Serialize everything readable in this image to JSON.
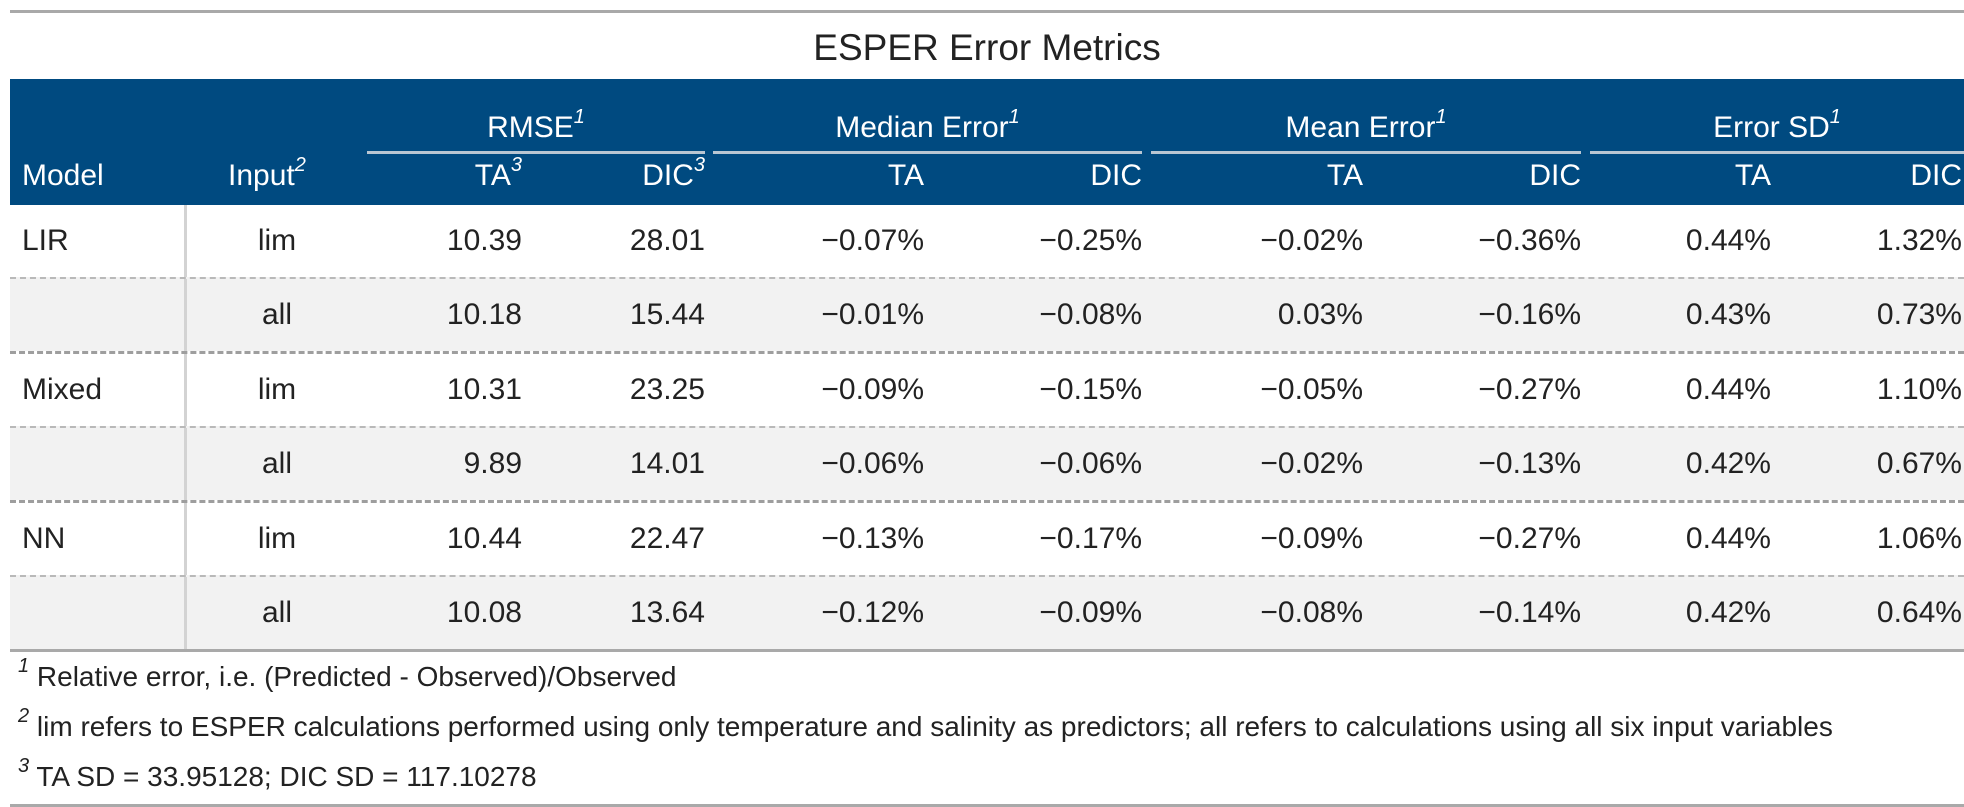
{
  "title": "ESPER Error Metrics",
  "header": {
    "model": "Model",
    "input": "Input",
    "input_note": "2",
    "groups": [
      {
        "label": "RMSE",
        "note": "1"
      },
      {
        "label": "Median Error",
        "note": "1"
      },
      {
        "label": "Mean Error",
        "note": "1"
      },
      {
        "label": "Error SD",
        "note": "1"
      }
    ],
    "sub": {
      "rmse_ta": "TA",
      "rmse_ta_note": "3",
      "rmse_dic": "DIC",
      "rmse_dic_note": "3",
      "ta": "TA",
      "dic": "DIC"
    }
  },
  "rows": [
    {
      "model": "LIR",
      "input": "lim",
      "vals": [
        "10.39",
        "28.01",
        "−0.07%",
        "−0.25%",
        "−0.02%",
        "−0.36%",
        "0.44%",
        "1.32%"
      ]
    },
    {
      "model": "",
      "input": "all",
      "vals": [
        "10.18",
        "15.44",
        "−0.01%",
        "−0.08%",
        "0.03%",
        "−0.16%",
        "0.43%",
        "0.73%"
      ]
    },
    {
      "model": "Mixed",
      "input": "lim",
      "vals": [
        "10.31",
        "23.25",
        "−0.09%",
        "−0.15%",
        "−0.05%",
        "−0.27%",
        "0.44%",
        "1.10%"
      ]
    },
    {
      "model": "",
      "input": "all",
      "vals": [
        "9.89",
        "14.01",
        "−0.06%",
        "−0.06%",
        "−0.02%",
        "−0.13%",
        "0.42%",
        "0.67%"
      ]
    },
    {
      "model": "NN",
      "input": "lim",
      "vals": [
        "10.44",
        "22.47",
        "−0.13%",
        "−0.17%",
        "−0.09%",
        "−0.27%",
        "0.44%",
        "1.06%"
      ]
    },
    {
      "model": "",
      "input": "all",
      "vals": [
        "10.08",
        "13.64",
        "−0.12%",
        "−0.09%",
        "−0.08%",
        "−0.14%",
        "0.42%",
        "0.64%"
      ]
    }
  ],
  "footnotes": [
    {
      "mark": "1",
      "text": "Relative error, i.e. (Predicted - Observed)/Observed"
    },
    {
      "mark": "2",
      "text": "lim refers to ESPER calculations performed using only temperature and salinity as predictors; all refers to calculations using all six input variables"
    },
    {
      "mark": "3",
      "text": "TA SD = 33.95128; DIC SD = 117.10278"
    }
  ],
  "colors": {
    "header_bg": "#004a80",
    "header_text": "#ffffff",
    "alt_row": "#f2f2f2"
  }
}
